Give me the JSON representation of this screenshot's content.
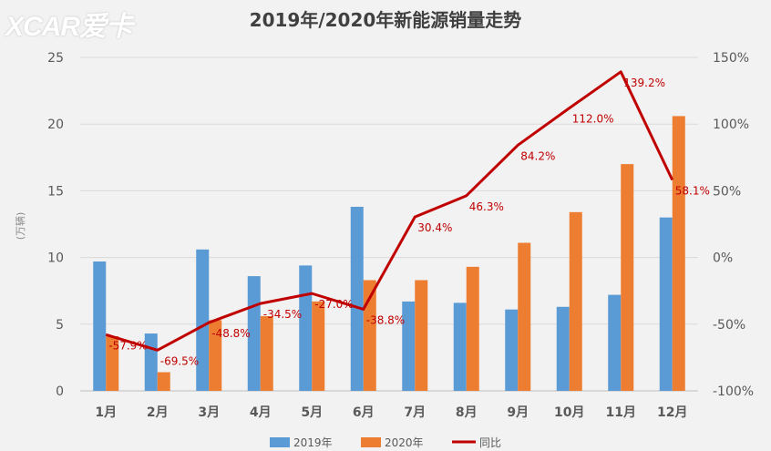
{
  "header": {
    "logo": "XCAR爱卡",
    "title": "2019年/2020年新能源销量走势"
  },
  "chart_data": {
    "type": "bar+line",
    "title": "2019年/2020年新能源销量走势",
    "ylabel": "(万辆)",
    "ylim": [
      0,
      25
    ],
    "y_ticks": [
      0,
      5,
      10,
      15,
      20,
      25
    ],
    "y2lim": [
      -100,
      150
    ],
    "y2_ticks": [
      "-100%",
      "-50%",
      "0%",
      "50%",
      "100%",
      "150%"
    ],
    "categories": [
      "1月",
      "2月",
      "3月",
      "4月",
      "5月",
      "6月",
      "7月",
      "8月",
      "9月",
      "10月",
      "11月",
      "12月"
    ],
    "series": [
      {
        "name": "2019年",
        "type": "bar",
        "color": "#5b9bd5",
        "values": [
          9.7,
          4.3,
          10.6,
          8.6,
          9.4,
          13.8,
          6.7,
          6.6,
          6.1,
          6.3,
          7.2,
          13.0
        ]
      },
      {
        "name": "2020年",
        "type": "bar",
        "color": "#ed7d31",
        "values": [
          4.1,
          1.4,
          5.3,
          5.6,
          6.7,
          8.3,
          8.3,
          9.3,
          11.1,
          13.4,
          17.0,
          20.6
        ]
      },
      {
        "name": "同比",
        "type": "line",
        "axis": "right",
        "color": "#c00000",
        "values": [
          -57.9,
          -69.5,
          -48.8,
          -34.5,
          -27.0,
          -38.8,
          30.4,
          46.3,
          84.2,
          112.0,
          139.2,
          58.1
        ],
        "labels": [
          "-57.9%",
          "-69.5%",
          "-48.8%",
          "-34.5%",
          "-27.0%",
          "-38.8%",
          "30.4%",
          "46.3%",
          "84.2%",
          "112.0%",
          "139.2%",
          "58.1%"
        ]
      }
    ],
    "legend_position": "bottom"
  }
}
